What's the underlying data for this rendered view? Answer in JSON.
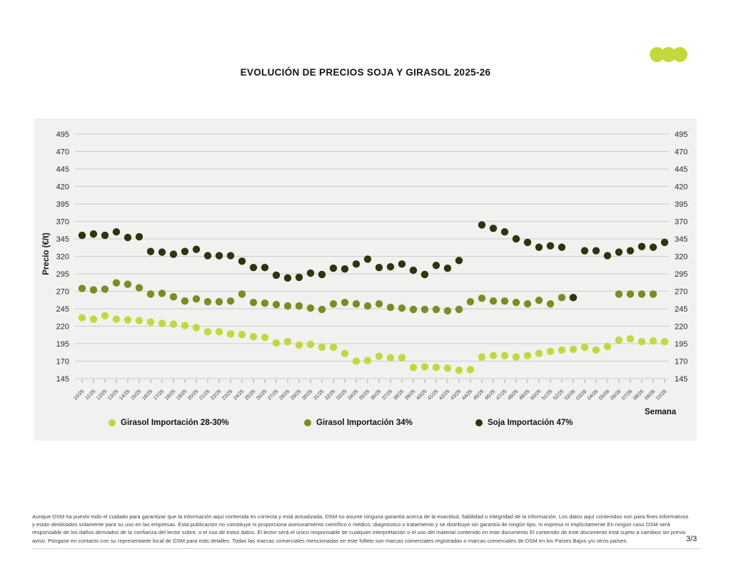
{
  "page": {
    "page_number": "3/3",
    "footer_disclaimer": "Aunque DSM ha puesto todo el cuidado para garantizar que la información aquí contenida es correcta y está actualizada, DSM no asume ninguna garantía acerca de la exactitud, fiabilidad o integridad de la información. Los datos aquí contenidos son para fines informativos y están destinados solamente para su uso en las empresas. Esta publicación no constituye ni proporciona asesoramiento científico o médico, diagnóstico o tratamiento y se distribuye sin garantía de ningún tipo, ni expresa ni implícitamente En ningún caso DSM será responsable de los daños derivados de la confianza del lector sobre, o el uso de estos datos. El lector será el único responsable de cualquier interpretación o el uso del material contenido en este documento El contenido de este documento está sujeto a cambios sin previo aviso. Póngase en contacto con su representante local de DSM para más detalles. Todas las marcas comerciales mencionadas en este folleto son marcas comerciales registradas o marcas comerciales de DSM en los Países Bajos y/u otros países.",
    "brand_logo_color": "#c5d83a"
  },
  "chart_data": {
    "type": "scatter",
    "title": "EVOLUCIÓN DE PRECIOS SOJA Y GIRASOL 2025-26",
    "xlabel": "Semana",
    "ylabel": "Precio (€/t)",
    "ylim": [
      145,
      495
    ],
    "ytick_step": 25,
    "grid": true,
    "legend_position": "bottom",
    "panel_background": "#f1f1ef",
    "categories": [
      "10/25",
      "11/25",
      "12/25",
      "13/25",
      "14/25",
      "15/25",
      "16/25",
      "17/25",
      "18/25",
      "19/25",
      "20/25",
      "21/25",
      "22/25",
      "23/25",
      "24/25",
      "25/25",
      "26/25",
      "27/25",
      "28/25",
      "29/25",
      "30/25",
      "31/25",
      "32/25",
      "33/25",
      "34/25",
      "35/25",
      "36/25",
      "37/25",
      "38/25",
      "39/25",
      "40/25",
      "41/25",
      "42/25",
      "43/25",
      "44/25",
      "45/25",
      "46/25",
      "47/25",
      "48/25",
      "49/25",
      "50/25",
      "51/25",
      "52/25",
      "02/26",
      "03/26",
      "04/26",
      "05/26",
      "06/26",
      "07/26",
      "08/26",
      "09/26",
      "10/26"
    ],
    "series": [
      {
        "name": "Girasol Importación 28-30%",
        "color": "#c5d83a",
        "values": [
          232,
          230,
          235,
          230,
          229,
          228,
          226,
          224,
          223,
          221,
          218,
          212,
          212,
          209,
          208,
          205,
          204,
          196,
          198,
          193,
          194,
          190,
          190,
          181,
          170,
          171,
          177,
          175,
          175,
          161,
          162,
          161,
          160,
          157,
          158,
          176,
          178,
          178,
          176,
          178,
          181,
          184,
          186,
          187,
          190,
          186,
          191,
          200,
          202,
          198,
          199,
          198
        ]
      },
      {
        "name": "Girasol Importación 34%",
        "color": "#7d8c1e",
        "values": [
          274,
          272,
          273,
          282,
          280,
          275,
          266,
          267,
          262,
          256,
          259,
          255,
          255,
          256,
          266,
          254,
          253,
          251,
          249,
          249,
          246,
          244,
          252,
          254,
          252,
          249,
          252,
          247,
          246,
          244,
          244,
          244,
          242,
          244,
          255,
          260,
          256,
          256,
          254,
          252,
          257,
          252,
          261,
          null,
          null,
          null,
          null,
          266,
          266,
          266,
          266,
          null
        ]
      },
      {
        "name": "Soja Importación 47%",
        "color": "#2d350c",
        "values": [
          350,
          352,
          350,
          355,
          347,
          348,
          327,
          326,
          323,
          327,
          330,
          321,
          321,
          321,
          313,
          304,
          304,
          293,
          289,
          290,
          296,
          294,
          303,
          302,
          309,
          316,
          304,
          305,
          309,
          300,
          294,
          307,
          303,
          314,
          null,
          365,
          360,
          355,
          345,
          340,
          333,
          335,
          333,
          261,
          328,
          328,
          321,
          326,
          328,
          334,
          333,
          340
        ]
      }
    ]
  }
}
